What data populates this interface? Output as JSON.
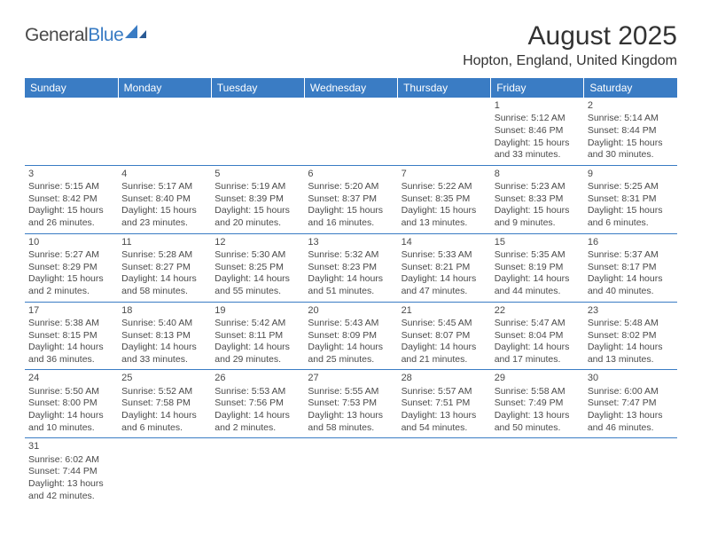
{
  "logo": {
    "word1": "General",
    "word2": "Blue"
  },
  "title": "August 2025",
  "location": "Hopton, England, United Kingdom",
  "colors": {
    "headerBg": "#3a7cc4",
    "headerText": "#ffffff",
    "border": "#3a7cc4",
    "text": "#4a4a4a",
    "background": "#ffffff"
  },
  "typography": {
    "title_fontsize": 30,
    "location_fontsize": 16,
    "dayheader_fontsize": 12,
    "cell_fontsize": 10.5
  },
  "layout": {
    "columns": 7,
    "rows": 6
  },
  "dayHeaders": [
    "Sunday",
    "Monday",
    "Tuesday",
    "Wednesday",
    "Thursday",
    "Friday",
    "Saturday"
  ],
  "weeks": [
    [
      null,
      null,
      null,
      null,
      null,
      {
        "n": "1",
        "sr": "Sunrise: 5:12 AM",
        "ss": "Sunset: 8:46 PM",
        "dl1": "Daylight: 15 hours",
        "dl2": "and 33 minutes."
      },
      {
        "n": "2",
        "sr": "Sunrise: 5:14 AM",
        "ss": "Sunset: 8:44 PM",
        "dl1": "Daylight: 15 hours",
        "dl2": "and 30 minutes."
      }
    ],
    [
      {
        "n": "3",
        "sr": "Sunrise: 5:15 AM",
        "ss": "Sunset: 8:42 PM",
        "dl1": "Daylight: 15 hours",
        "dl2": "and 26 minutes."
      },
      {
        "n": "4",
        "sr": "Sunrise: 5:17 AM",
        "ss": "Sunset: 8:40 PM",
        "dl1": "Daylight: 15 hours",
        "dl2": "and 23 minutes."
      },
      {
        "n": "5",
        "sr": "Sunrise: 5:19 AM",
        "ss": "Sunset: 8:39 PM",
        "dl1": "Daylight: 15 hours",
        "dl2": "and 20 minutes."
      },
      {
        "n": "6",
        "sr": "Sunrise: 5:20 AM",
        "ss": "Sunset: 8:37 PM",
        "dl1": "Daylight: 15 hours",
        "dl2": "and 16 minutes."
      },
      {
        "n": "7",
        "sr": "Sunrise: 5:22 AM",
        "ss": "Sunset: 8:35 PM",
        "dl1": "Daylight: 15 hours",
        "dl2": "and 13 minutes."
      },
      {
        "n": "8",
        "sr": "Sunrise: 5:23 AM",
        "ss": "Sunset: 8:33 PM",
        "dl1": "Daylight: 15 hours",
        "dl2": "and 9 minutes."
      },
      {
        "n": "9",
        "sr": "Sunrise: 5:25 AM",
        "ss": "Sunset: 8:31 PM",
        "dl1": "Daylight: 15 hours",
        "dl2": "and 6 minutes."
      }
    ],
    [
      {
        "n": "10",
        "sr": "Sunrise: 5:27 AM",
        "ss": "Sunset: 8:29 PM",
        "dl1": "Daylight: 15 hours",
        "dl2": "and 2 minutes."
      },
      {
        "n": "11",
        "sr": "Sunrise: 5:28 AM",
        "ss": "Sunset: 8:27 PM",
        "dl1": "Daylight: 14 hours",
        "dl2": "and 58 minutes."
      },
      {
        "n": "12",
        "sr": "Sunrise: 5:30 AM",
        "ss": "Sunset: 8:25 PM",
        "dl1": "Daylight: 14 hours",
        "dl2": "and 55 minutes."
      },
      {
        "n": "13",
        "sr": "Sunrise: 5:32 AM",
        "ss": "Sunset: 8:23 PM",
        "dl1": "Daylight: 14 hours",
        "dl2": "and 51 minutes."
      },
      {
        "n": "14",
        "sr": "Sunrise: 5:33 AM",
        "ss": "Sunset: 8:21 PM",
        "dl1": "Daylight: 14 hours",
        "dl2": "and 47 minutes."
      },
      {
        "n": "15",
        "sr": "Sunrise: 5:35 AM",
        "ss": "Sunset: 8:19 PM",
        "dl1": "Daylight: 14 hours",
        "dl2": "and 44 minutes."
      },
      {
        "n": "16",
        "sr": "Sunrise: 5:37 AM",
        "ss": "Sunset: 8:17 PM",
        "dl1": "Daylight: 14 hours",
        "dl2": "and 40 minutes."
      }
    ],
    [
      {
        "n": "17",
        "sr": "Sunrise: 5:38 AM",
        "ss": "Sunset: 8:15 PM",
        "dl1": "Daylight: 14 hours",
        "dl2": "and 36 minutes."
      },
      {
        "n": "18",
        "sr": "Sunrise: 5:40 AM",
        "ss": "Sunset: 8:13 PM",
        "dl1": "Daylight: 14 hours",
        "dl2": "and 33 minutes."
      },
      {
        "n": "19",
        "sr": "Sunrise: 5:42 AM",
        "ss": "Sunset: 8:11 PM",
        "dl1": "Daylight: 14 hours",
        "dl2": "and 29 minutes."
      },
      {
        "n": "20",
        "sr": "Sunrise: 5:43 AM",
        "ss": "Sunset: 8:09 PM",
        "dl1": "Daylight: 14 hours",
        "dl2": "and 25 minutes."
      },
      {
        "n": "21",
        "sr": "Sunrise: 5:45 AM",
        "ss": "Sunset: 8:07 PM",
        "dl1": "Daylight: 14 hours",
        "dl2": "and 21 minutes."
      },
      {
        "n": "22",
        "sr": "Sunrise: 5:47 AM",
        "ss": "Sunset: 8:04 PM",
        "dl1": "Daylight: 14 hours",
        "dl2": "and 17 minutes."
      },
      {
        "n": "23",
        "sr": "Sunrise: 5:48 AM",
        "ss": "Sunset: 8:02 PM",
        "dl1": "Daylight: 14 hours",
        "dl2": "and 13 minutes."
      }
    ],
    [
      {
        "n": "24",
        "sr": "Sunrise: 5:50 AM",
        "ss": "Sunset: 8:00 PM",
        "dl1": "Daylight: 14 hours",
        "dl2": "and 10 minutes."
      },
      {
        "n": "25",
        "sr": "Sunrise: 5:52 AM",
        "ss": "Sunset: 7:58 PM",
        "dl1": "Daylight: 14 hours",
        "dl2": "and 6 minutes."
      },
      {
        "n": "26",
        "sr": "Sunrise: 5:53 AM",
        "ss": "Sunset: 7:56 PM",
        "dl1": "Daylight: 14 hours",
        "dl2": "and 2 minutes."
      },
      {
        "n": "27",
        "sr": "Sunrise: 5:55 AM",
        "ss": "Sunset: 7:53 PM",
        "dl1": "Daylight: 13 hours",
        "dl2": "and 58 minutes."
      },
      {
        "n": "28",
        "sr": "Sunrise: 5:57 AM",
        "ss": "Sunset: 7:51 PM",
        "dl1": "Daylight: 13 hours",
        "dl2": "and 54 minutes."
      },
      {
        "n": "29",
        "sr": "Sunrise: 5:58 AM",
        "ss": "Sunset: 7:49 PM",
        "dl1": "Daylight: 13 hours",
        "dl2": "and 50 minutes."
      },
      {
        "n": "30",
        "sr": "Sunrise: 6:00 AM",
        "ss": "Sunset: 7:47 PM",
        "dl1": "Daylight: 13 hours",
        "dl2": "and 46 minutes."
      }
    ],
    [
      {
        "n": "31",
        "sr": "Sunrise: 6:02 AM",
        "ss": "Sunset: 7:44 PM",
        "dl1": "Daylight: 13 hours",
        "dl2": "and 42 minutes."
      },
      null,
      null,
      null,
      null,
      null,
      null
    ]
  ]
}
